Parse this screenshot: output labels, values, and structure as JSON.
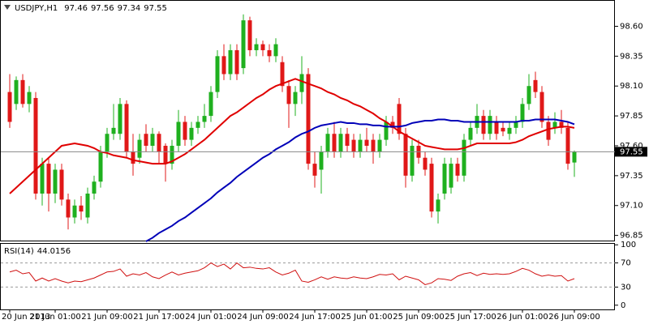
{
  "chart_data": {
    "type": "candlestick",
    "symbol": "USDJPY,H1",
    "bull_color": "#1fb01f",
    "bear_color": "#e01818",
    "ylim": [
      96.8,
      98.82
    ],
    "yticks": [
      {
        "value": 98.6,
        "label": "98.60"
      },
      98.35,
      {
        "value": 98.1,
        "label": "98.10"
      },
      97.85,
      {
        "value": 97.6,
        "label": "97.60"
      },
      97.35,
      {
        "value": 97.1,
        "label": "97.10"
      },
      96.85
    ],
    "categories": [
      "20 Jun 2013",
      null,
      null,
      null,
      null,
      null,
      null,
      "21 Jun 01:00",
      null,
      null,
      null,
      null,
      null,
      null,
      null,
      "21 Jun 09:00",
      null,
      null,
      null,
      null,
      null,
      null,
      null,
      "21 Jun 17:00",
      null,
      null,
      null,
      null,
      null,
      null,
      null,
      "24 Jun 01:00",
      null,
      null,
      null,
      null,
      null,
      null,
      null,
      "24 Jun 09:00",
      null,
      null,
      null,
      null,
      null,
      null,
      null,
      "24 Jun 17:00",
      null,
      null,
      null,
      null,
      null,
      null,
      null,
      "25 Jun 01:00",
      null,
      null,
      null,
      null,
      null,
      null,
      null,
      "25 Jun 09:00",
      null,
      null,
      null,
      null,
      null,
      null,
      null,
      "25 Jun 17:00",
      null,
      null,
      null,
      null,
      null,
      null,
      null,
      "26 Jun 01:00",
      null,
      null,
      null,
      null,
      null,
      null,
      null,
      "26 Jun 09:00"
    ],
    "ohlc": [
      [
        98.05,
        98.2,
        97.75,
        97.8
      ],
      [
        97.95,
        98.18,
        97.9,
        98.15
      ],
      [
        98.15,
        98.2,
        97.92,
        97.95
      ],
      [
        97.95,
        98.1,
        97.88,
        98.05
      ],
      [
        98.0,
        98.05,
        97.15,
        97.2
      ],
      [
        97.2,
        97.5,
        97.1,
        97.45
      ],
      [
        97.45,
        97.5,
        97.05,
        97.2
      ],
      [
        97.2,
        97.45,
        97.12,
        97.4
      ],
      [
        97.4,
        97.45,
        97.1,
        97.15
      ],
      [
        97.15,
        97.2,
        96.9,
        97.0
      ],
      [
        97.0,
        97.15,
        96.95,
        97.1
      ],
      [
        97.1,
        97.18,
        96.98,
        97.05
      ],
      [
        97.0,
        97.25,
        96.95,
        97.2
      ],
      [
        97.2,
        97.35,
        97.15,
        97.3
      ],
      [
        97.3,
        97.6,
        97.25,
        97.55
      ],
      [
        97.55,
        97.75,
        97.5,
        97.7
      ],
      [
        97.7,
        97.95,
        97.65,
        97.75
      ],
      [
        97.7,
        98.0,
        97.65,
        97.95
      ],
      [
        97.95,
        97.98,
        97.5,
        97.55
      ],
      [
        97.55,
        97.7,
        97.35,
        97.45
      ],
      [
        97.5,
        97.7,
        97.45,
        97.65
      ],
      [
        97.7,
        97.78,
        97.55,
        97.6
      ],
      [
        97.6,
        97.75,
        97.55,
        97.7
      ],
      [
        97.7,
        97.72,
        97.45,
        97.55
      ],
      [
        97.6,
        97.62,
        97.3,
        97.45
      ],
      [
        97.45,
        97.65,
        97.4,
        97.6
      ],
      [
        97.6,
        97.9,
        97.55,
        97.8
      ],
      [
        97.8,
        97.85,
        97.6,
        97.65
      ],
      [
        97.65,
        97.8,
        97.6,
        97.75
      ],
      [
        97.75,
        97.85,
        97.7,
        97.8
      ],
      [
        97.8,
        97.95,
        97.75,
        97.85
      ],
      [
        97.85,
        98.1,
        97.8,
        98.05
      ],
      [
        98.05,
        98.4,
        98.0,
        98.35
      ],
      [
        98.35,
        98.45,
        98.15,
        98.2
      ],
      [
        98.2,
        98.45,
        98.15,
        98.4
      ],
      [
        98.4,
        98.45,
        98.15,
        98.2
      ],
      [
        98.25,
        98.7,
        98.2,
        98.65
      ],
      [
        98.65,
        98.68,
        98.35,
        98.4
      ],
      [
        98.4,
        98.5,
        98.35,
        98.45
      ],
      [
        98.45,
        98.48,
        98.35,
        98.4
      ],
      [
        98.4,
        98.45,
        98.3,
        98.35
      ],
      [
        98.35,
        98.5,
        98.3,
        98.45
      ],
      [
        98.3,
        98.35,
        98.05,
        98.1
      ],
      [
        98.1,
        98.15,
        97.75,
        97.95
      ],
      [
        97.95,
        98.1,
        97.85,
        98.05
      ],
      [
        98.05,
        98.35,
        97.95,
        98.2
      ],
      [
        98.2,
        98.25,
        97.4,
        97.45
      ],
      [
        97.45,
        97.55,
        97.25,
        97.35
      ],
      [
        97.4,
        97.6,
        97.2,
        97.55
      ],
      [
        97.55,
        97.75,
        97.5,
        97.7
      ],
      [
        97.7,
        97.8,
        97.5,
        97.55
      ],
      [
        97.55,
        97.75,
        97.5,
        97.7
      ],
      [
        97.7,
        97.75,
        97.55,
        97.6
      ],
      [
        97.65,
        97.7,
        97.5,
        97.55
      ],
      [
        97.55,
        97.7,
        97.5,
        97.65
      ],
      [
        97.65,
        97.75,
        97.55,
        97.6
      ],
      [
        97.65,
        97.7,
        97.45,
        97.55
      ],
      [
        97.55,
        97.7,
        97.5,
        97.65
      ],
      [
        97.65,
        97.85,
        97.6,
        97.8
      ],
      [
        97.8,
        97.85,
        97.7,
        97.75
      ],
      [
        97.95,
        98.0,
        97.65,
        97.7
      ],
      [
        97.7,
        97.75,
        97.25,
        97.35
      ],
      [
        97.35,
        97.65,
        97.3,
        97.6
      ],
      [
        97.6,
        97.65,
        97.45,
        97.5
      ],
      [
        97.5,
        97.55,
        97.35,
        97.4
      ],
      [
        97.45,
        97.5,
        97.0,
        97.05
      ],
      [
        97.05,
        97.2,
        96.95,
        97.15
      ],
      [
        97.2,
        97.5,
        97.15,
        97.45
      ],
      [
        97.25,
        97.5,
        97.2,
        97.45
      ],
      [
        97.45,
        97.5,
        97.3,
        97.35
      ],
      [
        97.35,
        97.7,
        97.3,
        97.65
      ],
      [
        97.65,
        97.8,
        97.6,
        97.75
      ],
      [
        97.75,
        97.95,
        97.7,
        97.85
      ],
      [
        97.85,
        97.9,
        97.65,
        97.7
      ],
      [
        97.7,
        97.9,
        97.65,
        97.85
      ],
      [
        97.8,
        97.85,
        97.65,
        97.7
      ],
      [
        97.75,
        97.8,
        97.68,
        97.72
      ],
      [
        97.7,
        97.8,
        97.65,
        97.75
      ],
      [
        97.75,
        97.85,
        97.7,
        97.8
      ],
      [
        97.8,
        98.0,
        97.75,
        97.95
      ],
      [
        97.95,
        98.2,
        97.9,
        98.1
      ],
      [
        98.15,
        98.22,
        98.0,
        98.05
      ],
      [
        98.05,
        98.1,
        97.75,
        97.8
      ],
      [
        97.8,
        97.85,
        97.6,
        97.65
      ],
      [
        97.75,
        97.88,
        97.7,
        97.8
      ],
      [
        97.8,
        97.9,
        97.7,
        97.75
      ],
      [
        97.75,
        97.8,
        97.4,
        97.45
      ],
      [
        97.46,
        97.56,
        97.34,
        97.55
      ]
    ],
    "overlays": [
      {
        "color": "#e00000",
        "values": [
          97.2,
          97.25,
          97.3,
          97.35,
          97.4,
          97.45,
          97.5,
          97.55,
          97.6,
          97.61,
          97.62,
          97.61,
          97.6,
          97.58,
          97.55,
          97.54,
          97.52,
          97.51,
          97.5,
          97.48,
          97.47,
          97.46,
          97.45,
          97.45,
          97.45,
          97.47,
          97.5,
          97.53,
          97.57,
          97.61,
          97.65,
          97.7,
          97.75,
          97.8,
          97.85,
          97.88,
          97.92,
          97.96,
          98.0,
          98.03,
          98.07,
          98.1,
          98.12,
          98.14,
          98.16,
          98.14,
          98.12,
          98.1,
          98.08,
          98.05,
          98.03,
          98.0,
          97.98,
          97.95,
          97.93,
          97.9,
          97.87,
          97.83,
          97.8,
          97.76,
          97.72,
          97.69,
          97.66,
          97.63,
          97.6,
          97.59,
          97.58,
          97.57,
          97.57,
          97.57,
          97.58,
          97.6,
          97.62,
          97.62,
          97.62,
          97.62,
          97.62,
          97.62,
          97.63,
          97.65,
          97.68,
          97.7,
          97.72,
          97.74,
          97.75,
          97.76,
          97.76,
          97.75
        ]
      },
      {
        "color": "#0000b8",
        "values": [
          null,
          null,
          null,
          null,
          null,
          null,
          null,
          null,
          null,
          null,
          null,
          null,
          null,
          null,
          null,
          null,
          null,
          null,
          null,
          null,
          null,
          96.8,
          96.83,
          96.87,
          96.9,
          96.93,
          96.97,
          97.0,
          97.04,
          97.08,
          97.12,
          97.16,
          97.21,
          97.25,
          97.29,
          97.34,
          97.38,
          97.42,
          97.46,
          97.5,
          97.53,
          97.57,
          97.6,
          97.63,
          97.67,
          97.7,
          97.72,
          97.75,
          97.77,
          97.78,
          97.79,
          97.8,
          97.79,
          97.79,
          97.78,
          97.78,
          97.77,
          97.77,
          97.76,
          97.76,
          97.76,
          97.77,
          97.79,
          97.8,
          97.81,
          97.81,
          97.82,
          97.82,
          97.81,
          97.81,
          97.8,
          97.8,
          97.8,
          97.8,
          97.8,
          97.8,
          97.8,
          97.8,
          97.8,
          97.81,
          97.81,
          97.82,
          97.82,
          97.82,
          97.82,
          97.81,
          97.8,
          97.78
        ]
      }
    ],
    "rsi": {
      "name": "RSI(14)",
      "color": "#d01010",
      "ylim": [
        -7,
        103
      ],
      "yticks": [
        100,
        70,
        30,
        0
      ],
      "levels": [
        70,
        30
      ],
      "values": [
        55,
        58,
        52,
        54,
        40,
        45,
        40,
        44,
        40,
        37,
        40,
        39,
        42,
        45,
        50,
        55,
        56,
        60,
        48,
        52,
        50,
        54,
        47,
        44,
        50,
        55,
        50,
        53,
        55,
        57,
        62,
        70,
        64,
        68,
        60,
        70,
        62,
        63,
        61,
        60,
        62,
        55,
        50,
        53,
        58,
        40,
        38,
        42,
        47,
        43,
        47,
        45,
        44,
        47,
        45,
        44,
        47,
        51,
        50,
        52,
        42,
        48,
        45,
        42,
        34,
        37,
        44,
        43,
        41,
        48,
        52,
        54,
        49,
        53,
        51,
        52,
        51,
        52,
        56,
        61,
        58,
        52,
        48,
        50,
        48,
        49,
        40,
        44.0156
      ]
    }
  }
}
